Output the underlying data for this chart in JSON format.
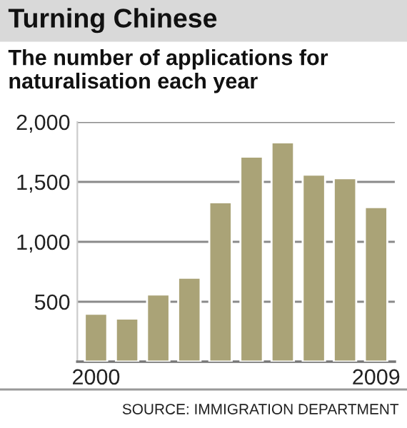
{
  "chart_data": {
    "type": "bar",
    "title": "Turning Chinese",
    "subtitle": "The number of applications for naturalisation each year",
    "categories": [
      "2000",
      null,
      null,
      null,
      null,
      null,
      null,
      null,
      null,
      "2009"
    ],
    "values": [
      400,
      360,
      560,
      700,
      1330,
      1710,
      1830,
      1560,
      1530,
      1290
    ],
    "color": "#aaa377",
    "ylim": [
      0,
      2000
    ],
    "yticks": [
      {
        "value": 500,
        "label": "500"
      },
      {
        "value": 1000,
        "label": "1,000"
      },
      {
        "value": 1500,
        "label": "1,500"
      },
      {
        "value": 2000,
        "label": "2,000"
      }
    ],
    "grid": "y",
    "annotations": [
      "SOURCE: IMMIGRATION DEPARTMENT"
    ]
  }
}
